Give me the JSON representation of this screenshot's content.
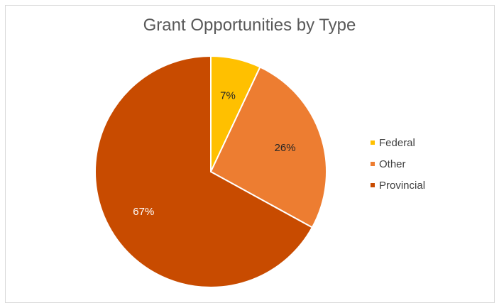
{
  "chart_data": {
    "type": "pie",
    "title": "Grant Opportunities by Type",
    "categories": [
      "Federal",
      "Other",
      "Provincial"
    ],
    "values": [
      7,
      26,
      67
    ],
    "labels": [
      "7%",
      "26%",
      "67%"
    ],
    "colors": [
      "#ffc000",
      "#ed7d31",
      "#c84b00"
    ],
    "label_colors": [
      "#262626",
      "#262626",
      "#ffffff"
    ],
    "legend_position": "right"
  }
}
